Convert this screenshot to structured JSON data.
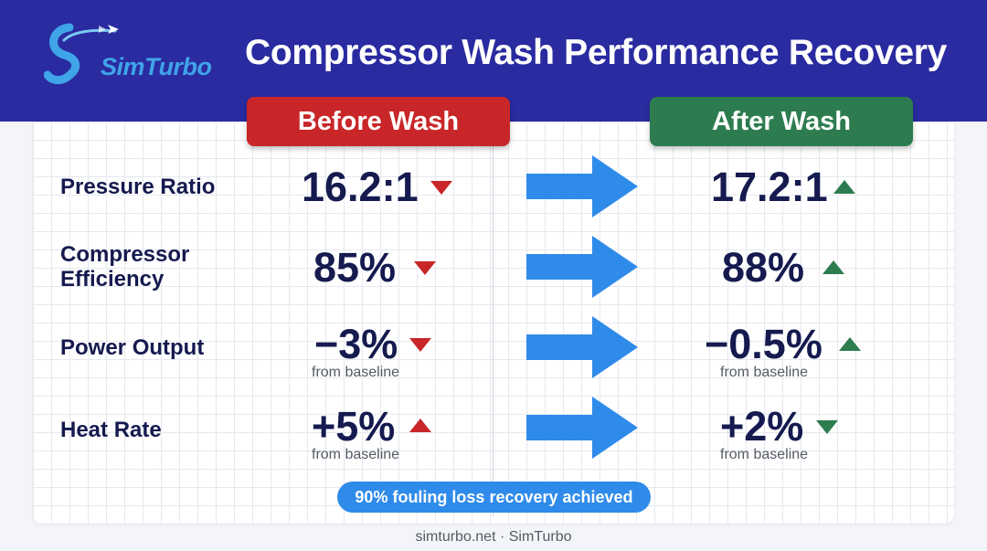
{
  "brand": {
    "logo_text": "SimTurbo",
    "accent": "#3fa4e8"
  },
  "title": "Compressor Wash Performance Recovery",
  "columns": {
    "before": "Before Wash",
    "after": "After Wash"
  },
  "colors": {
    "header": "#2a2ba0",
    "before": "#c82628",
    "after": "#2d7c4f",
    "arrow": "#2f8bea",
    "text": "#151a4f"
  },
  "rows": [
    {
      "label": "Pressure Ratio",
      "before": "16.2:1",
      "before_trend": "down",
      "after": "17.2:1",
      "after_trend": "up"
    },
    {
      "label": "Compressor\nEfficiency",
      "before": "85%",
      "before_trend": "down",
      "after": "88%",
      "after_trend": "up"
    },
    {
      "label": "Power Output",
      "before": "−3%",
      "before_trend": "down",
      "before_note": "from baseline",
      "after": "−0.5%",
      "after_trend": "up",
      "after_note": "from baseline"
    },
    {
      "label": "Heat Rate",
      "before": "+5%",
      "before_trend": "up",
      "before_note": "from baseline",
      "after": "+2%",
      "after_trend": "down",
      "after_note": "from baseline"
    }
  ],
  "badge": "90% fouling loss recovery achieved",
  "footer": "simturbo.net · SimTurbo"
}
